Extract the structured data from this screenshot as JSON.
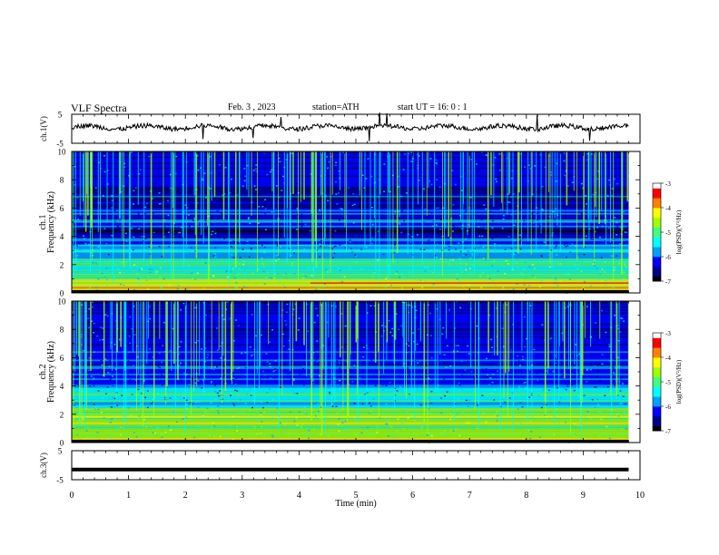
{
  "header": {
    "title": "VLF  Spectra",
    "date": "Feb. 3  , 2023",
    "station": "station=ATH",
    "start": "start  UT  =   16: 0   : 1"
  },
  "chart_data": [
    {
      "type": "line",
      "panel": "ch1-waveform",
      "ylabel": "ch.1(V)",
      "ylim": [
        -5,
        5
      ],
      "yticks": [
        "5",
        "-5"
      ],
      "xlim": [
        0,
        10
      ],
      "series": [
        {
          "values_description": "noisy trace near 0 V, slightly positive",
          "level": 0.5
        }
      ],
      "color": "#000000"
    },
    {
      "type": "heatmap",
      "panel": "ch1-spectrogram",
      "ylabel": "ch.1",
      "ylabel2": "Frequency  (kHz)",
      "ylim": [
        0,
        10
      ],
      "yticks": [
        "0",
        "2",
        "4",
        "6",
        "8",
        "10"
      ],
      "xlim": [
        0,
        9.8
      ],
      "colorbar": {
        "label": "log(PSD)(V²/Hz)",
        "range": [
          -7,
          -3
        ],
        "ticks": [
          "-3",
          "-4",
          "-5",
          "-6",
          "-7"
        ]
      }
    },
    {
      "type": "heatmap",
      "panel": "ch2-spectrogram",
      "ylabel": "ch.2",
      "ylabel2": "Frequency  (kHz)",
      "ylim": [
        0,
        10
      ],
      "yticks": [
        "0",
        "2",
        "4",
        "6",
        "8",
        "10"
      ],
      "xlim": [
        0,
        9.8
      ],
      "colorbar": {
        "label": "log(PSD)(V²/Hz)",
        "range": [
          -7,
          -3
        ],
        "ticks": [
          "-3",
          "-4",
          "-5",
          "-6",
          "-7"
        ]
      }
    },
    {
      "type": "line",
      "panel": "ch3-waveform",
      "ylabel": "ch.3(V)",
      "ylim": [
        -5,
        5
      ],
      "yticks": [
        "5",
        "-5"
      ],
      "xlim": [
        0,
        10
      ],
      "series": [
        {
          "values_description": "flat line",
          "level": -1.5
        }
      ],
      "color": "#000000"
    }
  ],
  "x_axis": {
    "label": "Time  (min)",
    "ticks": [
      "0",
      "1",
      "2",
      "3",
      "4",
      "5",
      "6",
      "7",
      "8",
      "9",
      "10"
    ],
    "xlim": [
      0,
      10
    ]
  },
  "colors": {
    "cmap": [
      "#000000",
      "#00008b",
      "#0000ff",
      "#00a0ff",
      "#00ffff",
      "#40ff80",
      "#a0ff00",
      "#ffff00",
      "#ff8000",
      "#ff0000",
      "#ffffff"
    ]
  }
}
